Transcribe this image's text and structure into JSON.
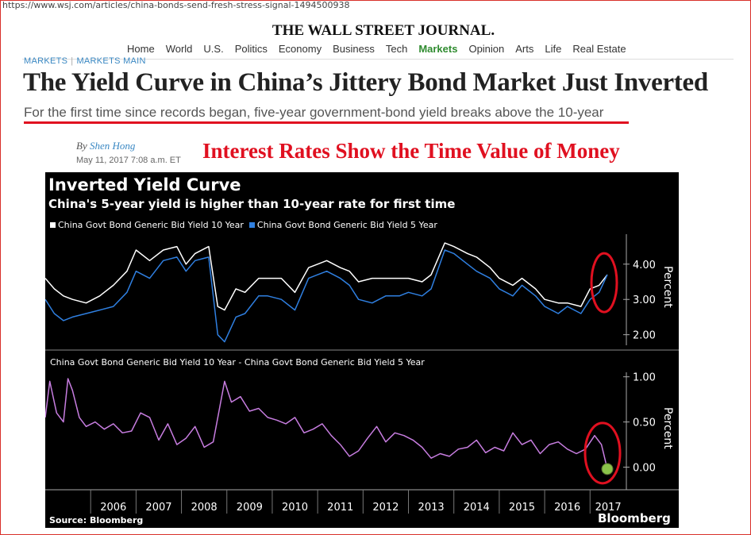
{
  "browser": {
    "url": "https://www.wsj.com/articles/china-bonds-send-fresh-stress-signal-1494500938"
  },
  "masthead": "THE WALL STREET JOURNAL.",
  "nav": [
    "Home",
    "World",
    "U.S.",
    "Politics",
    "Economy",
    "Business",
    "Tech",
    "Markets",
    "Opinion",
    "Arts",
    "Life",
    "Real Estate"
  ],
  "nav_active": "Markets",
  "breadcrumb": {
    "section": "MARKETS",
    "sep": "|",
    "subsection": "MARKETS MAIN"
  },
  "article": {
    "headline": "The Yield Curve in China’s Jittery Bond Market Just Inverted",
    "dek": "For the first time since records began, five-year government-bond yield breaks above the 10-year",
    "by": "By",
    "author": "Shen Hong",
    "date": "May 11, 2017 7:08 a.m. ET"
  },
  "overlay_text": "Interest Rates Show the Time Value of Money",
  "colors": {
    "series10": "#ffffff",
    "series5": "#2f7fe0",
    "spread": "#c77de0",
    "annotation": "#e01020",
    "marker": "#8bc34a"
  },
  "chart_data": {
    "type": "line",
    "title": "Inverted Yield Curve",
    "subtitle": "China's 5-year yield is higher than 10-year rate for first time",
    "source": "Source: Bloomberg",
    "brand": "Bloomberg",
    "x_ticks": [
      "2006",
      "2007",
      "2008",
      "2009",
      "2010",
      "2011",
      "2012",
      "2013",
      "2014",
      "2015",
      "2016",
      "2017"
    ],
    "x_range": [
      2005.0,
      2017.45
    ],
    "panels": [
      {
        "ylabel": "Percent",
        "ylim": [
          1.7,
          4.85
        ],
        "yticks": [
          "2.00",
          "3.00",
          "4.00"
        ],
        "series": [
          {
            "name": "China Govt Bond Generic Bid Yield 10 Year",
            "x": [
              2005.0,
              2005.2,
              2005.4,
              2005.6,
              2005.9,
              2006.2,
              2006.5,
              2006.8,
              2007.0,
              2007.3,
              2007.6,
              2007.9,
              2008.1,
              2008.3,
              2008.6,
              2008.8,
              2008.95,
              2009.2,
              2009.4,
              2009.7,
              2009.9,
              2010.2,
              2010.5,
              2010.8,
              2011.0,
              2011.2,
              2011.5,
              2011.7,
              2011.9,
              2012.2,
              2012.5,
              2012.8,
              2013.0,
              2013.3,
              2013.5,
              2013.8,
              2014.0,
              2014.3,
              2014.5,
              2014.8,
              2015.0,
              2015.3,
              2015.5,
              2015.8,
              2016.0,
              2016.3,
              2016.5,
              2016.8,
              2017.0,
              2017.2,
              2017.38
            ],
            "values": [
              3.6,
              3.3,
              3.1,
              3.0,
              2.9,
              3.1,
              3.4,
              3.8,
              4.4,
              4.1,
              4.4,
              4.5,
              4.0,
              4.3,
              4.5,
              2.8,
              2.7,
              3.3,
              3.2,
              3.6,
              3.6,
              3.6,
              3.2,
              3.9,
              4.0,
              4.1,
              3.9,
              3.8,
              3.5,
              3.6,
              3.6,
              3.6,
              3.6,
              3.5,
              3.7,
              4.6,
              4.5,
              4.3,
              4.2,
              3.9,
              3.6,
              3.4,
              3.6,
              3.3,
              3.0,
              2.9,
              2.9,
              2.8,
              3.3,
              3.4,
              3.7
            ]
          },
          {
            "name": "China Govt Bond Generic Bid Yield 5 Year",
            "x": [
              2005.0,
              2005.2,
              2005.4,
              2005.6,
              2005.9,
              2006.2,
              2006.5,
              2006.8,
              2007.0,
              2007.3,
              2007.6,
              2007.9,
              2008.1,
              2008.3,
              2008.6,
              2008.8,
              2008.95,
              2009.2,
              2009.4,
              2009.7,
              2009.9,
              2010.2,
              2010.5,
              2010.8,
              2011.0,
              2011.2,
              2011.5,
              2011.7,
              2011.9,
              2012.2,
              2012.5,
              2012.8,
              2013.0,
              2013.3,
              2013.5,
              2013.8,
              2014.0,
              2014.3,
              2014.5,
              2014.8,
              2015.0,
              2015.3,
              2015.5,
              2015.8,
              2016.0,
              2016.3,
              2016.5,
              2016.8,
              2017.0,
              2017.2,
              2017.38
            ],
            "values": [
              3.0,
              2.6,
              2.4,
              2.5,
              2.6,
              2.7,
              2.8,
              3.2,
              3.8,
              3.6,
              4.1,
              4.2,
              3.8,
              4.1,
              4.2,
              2.0,
              1.8,
              2.5,
              2.6,
              3.1,
              3.1,
              3.0,
              2.7,
              3.6,
              3.7,
              3.8,
              3.6,
              3.4,
              3.0,
              2.9,
              3.1,
              3.1,
              3.2,
              3.1,
              3.3,
              4.4,
              4.3,
              4.0,
              3.8,
              3.6,
              3.3,
              3.1,
              3.4,
              3.1,
              2.8,
              2.6,
              2.8,
              2.6,
              3.0,
              3.2,
              3.7
            ]
          }
        ]
      },
      {
        "ylabel": "Percent",
        "ylim": [
          -0.25,
          1.05
        ],
        "yticks": [
          "0.00",
          "0.50",
          "1.00"
        ],
        "series": [
          {
            "name": "China Govt Bond Generic Bid Yield 10 Year - China Govt Bond Generic Bid Yield 5 Year",
            "x": [
              2005.0,
              2005.1,
              2005.25,
              2005.4,
              2005.5,
              2005.6,
              2005.75,
              2005.9,
              2006.1,
              2006.3,
              2006.5,
              2006.7,
              2006.9,
              2007.1,
              2007.3,
              2007.5,
              2007.7,
              2007.9,
              2008.1,
              2008.3,
              2008.5,
              2008.7,
              2008.95,
              2009.1,
              2009.3,
              2009.5,
              2009.7,
              2009.9,
              2010.1,
              2010.3,
              2010.5,
              2010.7,
              2010.9,
              2011.1,
              2011.3,
              2011.5,
              2011.7,
              2011.9,
              2012.1,
              2012.3,
              2012.5,
              2012.7,
              2012.9,
              2013.1,
              2013.3,
              2013.5,
              2013.7,
              2013.9,
              2014.1,
              2014.3,
              2014.5,
              2014.7,
              2014.9,
              2015.1,
              2015.3,
              2015.5,
              2015.7,
              2015.9,
              2016.1,
              2016.3,
              2016.5,
              2016.7,
              2016.9,
              2017.1,
              2017.25,
              2017.38
            ],
            "values": [
              0.55,
              0.95,
              0.6,
              0.5,
              0.98,
              0.85,
              0.55,
              0.45,
              0.5,
              0.42,
              0.48,
              0.38,
              0.4,
              0.6,
              0.55,
              0.3,
              0.48,
              0.25,
              0.32,
              0.45,
              0.22,
              0.28,
              0.95,
              0.72,
              0.78,
              0.62,
              0.65,
              0.55,
              0.52,
              0.48,
              0.55,
              0.38,
              0.42,
              0.48,
              0.35,
              0.25,
              0.12,
              0.18,
              0.32,
              0.45,
              0.28,
              0.38,
              0.35,
              0.3,
              0.22,
              0.1,
              0.15,
              0.12,
              0.2,
              0.22,
              0.3,
              0.16,
              0.22,
              0.18,
              0.38,
              0.25,
              0.3,
              0.15,
              0.25,
              0.28,
              0.2,
              0.15,
              0.2,
              0.35,
              0.25,
              -0.02
            ]
          }
        ]
      }
    ],
    "legend_placement": "top-left",
    "grid": false
  }
}
